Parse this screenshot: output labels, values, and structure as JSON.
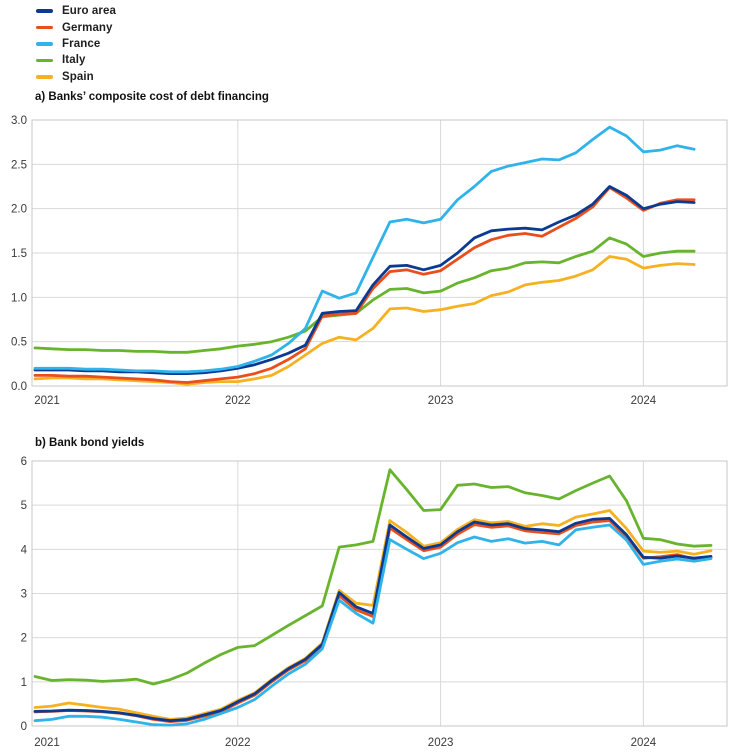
{
  "legend": {
    "items": [
      {
        "label": "Euro area",
        "color": "#0A3A91"
      },
      {
        "label": "Germany",
        "color": "#E94E1B"
      },
      {
        "label": "France",
        "color": "#2FB3E8"
      },
      {
        "label": "Italy",
        "color": "#69B42D"
      },
      {
        "label": "Spain",
        "color": "#F6B121"
      }
    ]
  },
  "colors": {
    "gridline": "#d9d9d9",
    "plot_border": "#c7c7c7",
    "x_axis_line": "#8f8f8f",
    "tick_text": "#3a3a3a"
  },
  "chart_data": [
    {
      "type": "line",
      "title": "a) Banks’ composite cost of debt financing",
      "x_start": "2021-01",
      "x_frequency": "monthly",
      "x_axis": {
        "labels": [
          "2021",
          "2022",
          "2023",
          "2024"
        ]
      },
      "y_axis": {
        "min": 0,
        "max": 3,
        "step": 0.5,
        "labels": [
          "3.0",
          "2.5",
          "2.0",
          "1.5",
          "1.0",
          "0.5",
          "0.0"
        ]
      },
      "ylim": [
        0,
        3
      ],
      "grid": true,
      "legend_position": "top-left",
      "series_draw_order_note": "listed back-to-front",
      "series": [
        {
          "name": "Italy",
          "color": "#69B42D",
          "values": [
            0.43,
            0.42,
            0.41,
            0.41,
            0.4,
            0.4,
            0.39,
            0.39,
            0.38,
            0.38,
            0.4,
            0.42,
            0.45,
            0.47,
            0.5,
            0.55,
            0.62,
            0.78,
            0.8,
            0.82,
            0.97,
            1.09,
            1.1,
            1.05,
            1.07,
            1.16,
            1.22,
            1.3,
            1.33,
            1.39,
            1.4,
            1.39,
            1.46,
            1.52,
            1.67,
            1.6,
            1.46,
            1.5,
            1.52,
            1.52
          ]
        },
        {
          "name": "Spain",
          "color": "#F6B121",
          "values": [
            0.08,
            0.09,
            0.09,
            0.08,
            0.08,
            0.07,
            0.06,
            0.05,
            0.04,
            0.02,
            0.04,
            0.05,
            0.05,
            0.08,
            0.12,
            0.22,
            0.35,
            0.48,
            0.55,
            0.52,
            0.65,
            0.87,
            0.88,
            0.84,
            0.86,
            0.9,
            0.93,
            1.02,
            1.06,
            1.14,
            1.17,
            1.19,
            1.24,
            1.31,
            1.46,
            1.43,
            1.33,
            1.36,
            1.38,
            1.37
          ]
        },
        {
          "name": "Germany",
          "color": "#E94E1B",
          "values": [
            0.12,
            0.12,
            0.11,
            0.11,
            0.1,
            0.09,
            0.08,
            0.07,
            0.05,
            0.04,
            0.06,
            0.08,
            0.1,
            0.14,
            0.2,
            0.3,
            0.42,
            0.79,
            0.81,
            0.82,
            1.1,
            1.29,
            1.31,
            1.26,
            1.3,
            1.43,
            1.56,
            1.65,
            1.7,
            1.72,
            1.69,
            1.79,
            1.89,
            2.02,
            2.24,
            2.12,
            1.98,
            2.06,
            2.1,
            2.1
          ]
        },
        {
          "name": "Euro area",
          "color": "#0A3A91",
          "values": [
            0.18,
            0.18,
            0.18,
            0.17,
            0.17,
            0.16,
            0.16,
            0.15,
            0.14,
            0.14,
            0.15,
            0.17,
            0.2,
            0.24,
            0.3,
            0.37,
            0.46,
            0.82,
            0.84,
            0.85,
            1.14,
            1.35,
            1.36,
            1.31,
            1.36,
            1.5,
            1.67,
            1.75,
            1.77,
            1.78,
            1.76,
            1.85,
            1.93,
            2.05,
            2.25,
            2.15,
            2.0,
            2.05,
            2.08,
            2.07
          ]
        },
        {
          "name": "France",
          "color": "#2FB3E8",
          "values": [
            0.2,
            0.2,
            0.2,
            0.19,
            0.19,
            0.18,
            0.17,
            0.17,
            0.16,
            0.16,
            0.17,
            0.19,
            0.22,
            0.28,
            0.35,
            0.48,
            0.65,
            1.07,
            0.99,
            1.05,
            1.45,
            1.85,
            1.88,
            1.84,
            1.88,
            2.1,
            2.25,
            2.42,
            2.48,
            2.52,
            2.56,
            2.55,
            2.63,
            2.78,
            2.92,
            2.82,
            2.64,
            2.66,
            2.71,
            2.67
          ]
        }
      ]
    },
    {
      "type": "line",
      "title": "b) Bank bond yields",
      "x_start": "2021-01",
      "x_frequency": "monthly",
      "x_axis": {
        "labels": [
          "2021",
          "2022",
          "2023",
          "2024"
        ]
      },
      "y_axis": {
        "min": 0,
        "max": 6,
        "step": 1,
        "labels": [
          "6",
          "5",
          "4",
          "3",
          "2",
          "1",
          "0"
        ]
      },
      "ylim": [
        0,
        6
      ],
      "grid": true,
      "legend_position": "top-left",
      "series_draw_order_note": "listed back-to-front",
      "series": [
        {
          "name": "Italy",
          "color": "#69B42D",
          "values": [
            1.12,
            1.03,
            1.05,
            1.04,
            1.01,
            1.03,
            1.06,
            0.95,
            1.05,
            1.2,
            1.42,
            1.62,
            1.78,
            1.82,
            2.05,
            2.28,
            2.5,
            2.72,
            4.05,
            4.1,
            4.18,
            5.8,
            5.35,
            4.88,
            4.9,
            5.45,
            5.48,
            5.4,
            5.42,
            5.28,
            5.22,
            5.14,
            5.33,
            5.5,
            5.66,
            5.1,
            4.25,
            4.22,
            4.12,
            4.07,
            4.09
          ]
        },
        {
          "name": "Spain",
          "color": "#F6B121",
          "values": [
            0.42,
            0.45,
            0.52,
            0.47,
            0.42,
            0.38,
            0.3,
            0.22,
            0.15,
            0.18,
            0.28,
            0.38,
            0.58,
            0.75,
            1.05,
            1.32,
            1.53,
            1.88,
            3.07,
            2.78,
            2.73,
            4.65,
            4.38,
            4.07,
            4.15,
            4.45,
            4.67,
            4.6,
            4.63,
            4.52,
            4.58,
            4.54,
            4.73,
            4.8,
            4.88,
            4.47,
            3.96,
            3.93,
            3.96,
            3.89,
            3.97
          ]
        },
        {
          "name": "Germany",
          "color": "#E94E1B",
          "values": [
            0.32,
            0.33,
            0.35,
            0.34,
            0.32,
            0.29,
            0.23,
            0.15,
            0.1,
            0.13,
            0.22,
            0.32,
            0.52,
            0.7,
            1.0,
            1.27,
            1.48,
            1.82,
            2.95,
            2.63,
            2.48,
            4.48,
            4.22,
            3.97,
            4.05,
            4.34,
            4.56,
            4.5,
            4.53,
            4.42,
            4.38,
            4.35,
            4.54,
            4.62,
            4.65,
            4.28,
            3.8,
            3.83,
            3.88,
            3.78,
            3.82
          ]
        },
        {
          "name": "Euro area",
          "color": "#0A3A91",
          "values": [
            0.33,
            0.34,
            0.36,
            0.35,
            0.33,
            0.3,
            0.24,
            0.17,
            0.12,
            0.15,
            0.25,
            0.35,
            0.55,
            0.73,
            1.03,
            1.3,
            1.51,
            1.85,
            3.02,
            2.7,
            2.55,
            4.55,
            4.28,
            4.02,
            4.1,
            4.4,
            4.62,
            4.55,
            4.58,
            4.47,
            4.44,
            4.4,
            4.59,
            4.68,
            4.7,
            4.33,
            3.82,
            3.8,
            3.85,
            3.8,
            3.84
          ]
        },
        {
          "name": "France",
          "color": "#2FB3E8",
          "values": [
            0.12,
            0.15,
            0.22,
            0.22,
            0.2,
            0.15,
            0.09,
            0.03,
            0.02,
            0.05,
            0.15,
            0.28,
            0.42,
            0.6,
            0.9,
            1.18,
            1.4,
            1.75,
            2.85,
            2.55,
            2.33,
            4.22,
            4.0,
            3.79,
            3.91,
            4.15,
            4.28,
            4.18,
            4.24,
            4.14,
            4.18,
            4.1,
            4.44,
            4.5,
            4.55,
            4.21,
            3.66,
            3.73,
            3.78,
            3.73,
            3.79
          ]
        }
      ]
    }
  ]
}
